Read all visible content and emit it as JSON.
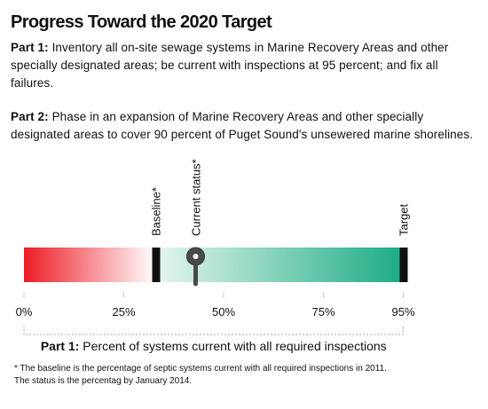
{
  "title": "Progress Toward the 2020 Target",
  "part1": {
    "label": "Part 1:",
    "text": "Inventory all on-site sewage systems in Marine Recovery Areas and other specially designated areas; be current with inspections at 95 percent; and fix all failures."
  },
  "part2": {
    "label": "Part 2:",
    "text": "Phase in an expansion of Marine Recovery Areas and other specially designated areas to cover 90 percent of Puget Sound's unsewered marine shorelines."
  },
  "footnote": {
    "line1": "* The baseline is the percentage of septic systems current with all required inspections in 2011.",
    "line2": "The status is the percentag by January 2014."
  },
  "chart_data": {
    "type": "bar",
    "title": "",
    "xlabel_prefix": "Part 1:",
    "xlabel": "Percent of systems current with all required inspections",
    "xlim": [
      0,
      100
    ],
    "ticks": [
      0,
      25,
      50,
      75,
      95
    ],
    "tick_labels": [
      "0%",
      "25%",
      "50%",
      "75%",
      "95%"
    ],
    "markers": [
      {
        "name": "Baseline*",
        "value": 33
      },
      {
        "name": "Current status*",
        "value": 43
      },
      {
        "name": "Target",
        "value": 95
      }
    ],
    "colors": {
      "red": "#ee1c25",
      "white": "#ffffff",
      "green": "#1aab82",
      "marker": "#111111",
      "pin": "#4a4a4a"
    }
  }
}
